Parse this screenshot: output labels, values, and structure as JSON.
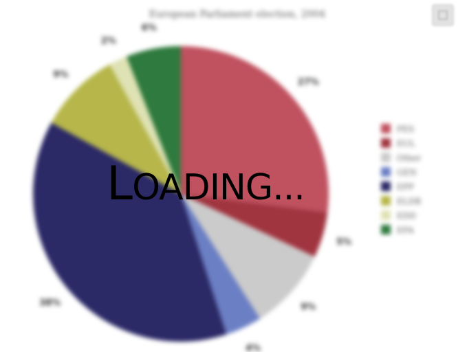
{
  "loading_text": "Loading...",
  "chart_data": {
    "type": "pie",
    "title": "European Parliament election, 2004",
    "slices": [
      {
        "name": "PES",
        "value": 27,
        "label": "27%",
        "color": "#c0515f"
      },
      {
        "name": "EUL",
        "value": 5,
        "label": "5%",
        "color": "#a0343f"
      },
      {
        "name": "Other",
        "value": 9,
        "label": "9%",
        "color": "#cbcbcb"
      },
      {
        "name": "GEN",
        "value": 4,
        "label": "4%",
        "color": "#6b7fc4"
      },
      {
        "name": "EPP",
        "value": 38,
        "label": "38%",
        "color": "#2b2966"
      },
      {
        "name": "ELDR",
        "value": 9,
        "label": "9%",
        "color": "#b6b64a"
      },
      {
        "name": "EDD",
        "value": 2,
        "label": "2%",
        "color": "#dfe2b4"
      },
      {
        "name": "EFA",
        "value": 6,
        "label": "6%",
        "color": "#2f7a3e"
      }
    ],
    "legend_placement": "right",
    "start_angle": "12 o'clock, clockwise"
  }
}
